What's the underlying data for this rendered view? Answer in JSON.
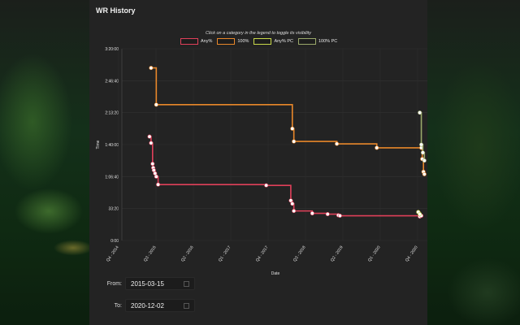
{
  "panel": {
    "title": "WR History"
  },
  "legend": {
    "hint": "Click on a category in the legend to toggle its visibility",
    "items": [
      {
        "label": "Any%",
        "color": "#e0405a"
      },
      {
        "label": "100%",
        "color": "#e8872a"
      },
      {
        "label": "Any% PC",
        "color": "#c8d84a"
      },
      {
        "label": "100% PC",
        "color": "#9aa86a"
      }
    ]
  },
  "filters": {
    "from_label": "From:",
    "from_value": "2015-03-15",
    "to_label": "To:",
    "to_value": "2020-12-02"
  },
  "chart_data": {
    "type": "line",
    "title": "WR History",
    "xlabel": "Date",
    "ylabel": "Time",
    "y_ticks": [
      "0:00",
      "33:20",
      "1:06:40",
      "1:40:00",
      "2:13:20",
      "2:46:40",
      "3:20:00"
    ],
    "ylim_seconds": [
      0,
      12000
    ],
    "x_ticks": [
      "Q4 - 2014",
      "Q3 - 2015",
      "Q2 - 2016",
      "Q1 - 2017",
      "Q4 - 2017",
      "Q3 - 2018",
      "Q2 - 2019",
      "Q1 - 2020",
      "Q4 - 2020"
    ],
    "series": [
      {
        "name": "Any%",
        "color": "#e0405a",
        "step": true,
        "points": [
          [
            0.09,
            6500
          ],
          [
            0.095,
            6100
          ],
          [
            0.1,
            4800
          ],
          [
            0.102,
            4550
          ],
          [
            0.104,
            4400
          ],
          [
            0.108,
            4200
          ],
          [
            0.112,
            4000
          ],
          [
            0.118,
            3500
          ],
          [
            0.47,
            3450
          ],
          [
            0.55,
            2500
          ],
          [
            0.555,
            2300
          ],
          [
            0.56,
            1850
          ],
          [
            0.62,
            1700
          ],
          [
            0.67,
            1650
          ],
          [
            0.705,
            1580
          ],
          [
            0.71,
            1550
          ],
          [
            0.97,
            1500
          ],
          [
            0.975,
            1550
          ]
        ]
      },
      {
        "name": "100%",
        "color": "#e8872a",
        "step": true,
        "points": [
          [
            0.095,
            10800
          ],
          [
            0.112,
            8500
          ],
          [
            0.555,
            7000
          ],
          [
            0.56,
            6200
          ],
          [
            0.7,
            6050
          ],
          [
            0.83,
            5800
          ],
          [
            0.975,
            5800
          ],
          [
            0.978,
            5100
          ],
          [
            0.982,
            4300
          ],
          [
            0.985,
            4150
          ]
        ]
      },
      {
        "name": "Any% PC",
        "color": "#c8d84a",
        "step": true,
        "points": [
          [
            0.965,
            1780
          ],
          [
            0.97,
            1650
          ]
        ]
      },
      {
        "name": "100% PC",
        "color": "#9aa86a",
        "step": true,
        "points": [
          [
            0.97,
            8000
          ],
          [
            0.975,
            6000
          ],
          [
            0.98,
            5500
          ],
          [
            0.985,
            5000
          ]
        ]
      }
    ]
  }
}
